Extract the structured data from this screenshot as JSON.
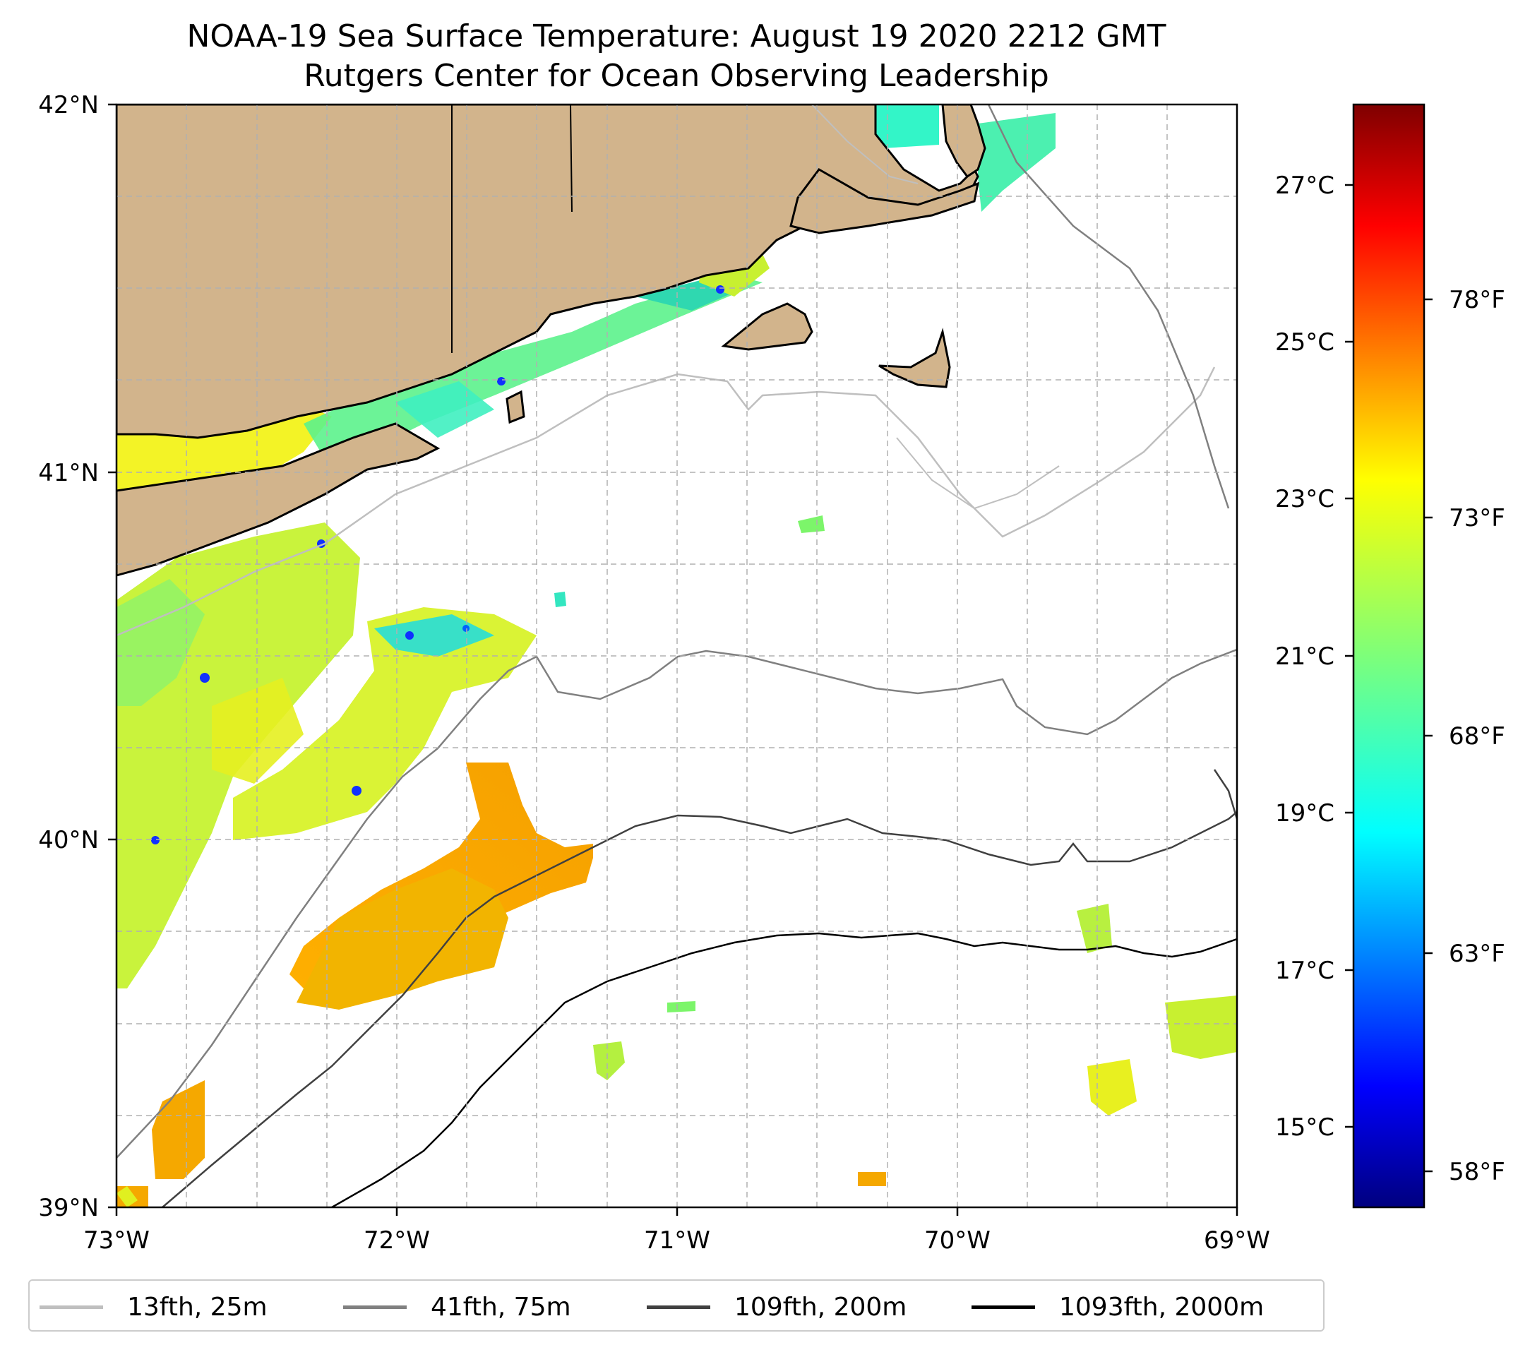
{
  "title": {
    "line1": "NOAA-19 Sea Surface Temperature: August 19 2020 2212 GMT",
    "line2": "Rutgers Center for Ocean Observing Leadership"
  },
  "map": {
    "lon_range": [
      -73,
      -69
    ],
    "lat_range": [
      39,
      42
    ],
    "x_ticks": [
      "73°W",
      "72°W",
      "71°W",
      "70°W",
      "69°W"
    ],
    "y_ticks": [
      "42°N",
      "41°N",
      "40°N",
      "39°N"
    ],
    "colors": {
      "land": "#d2b48c",
      "coast": "#000000",
      "grid": "#b0b0b0"
    }
  },
  "colorbar": {
    "colormap": "jet",
    "celsius_ticks": [
      "27°C",
      "25°C",
      "23°C",
      "21°C",
      "19°C",
      "17°C",
      "15°C"
    ],
    "fahrenheit_ticks": [
      "78°F",
      "73°F",
      "68°F",
      "63°F",
      "58°F"
    ]
  },
  "legend": [
    {
      "label": "13fth, 25m",
      "color": "#bfbfbf"
    },
    {
      "label": "41fth, 75m",
      "color": "#808080"
    },
    {
      "label": "109fth, 200m",
      "color": "#404040"
    },
    {
      "label": "1093fth, 2000m",
      "color": "#000000"
    }
  ]
}
